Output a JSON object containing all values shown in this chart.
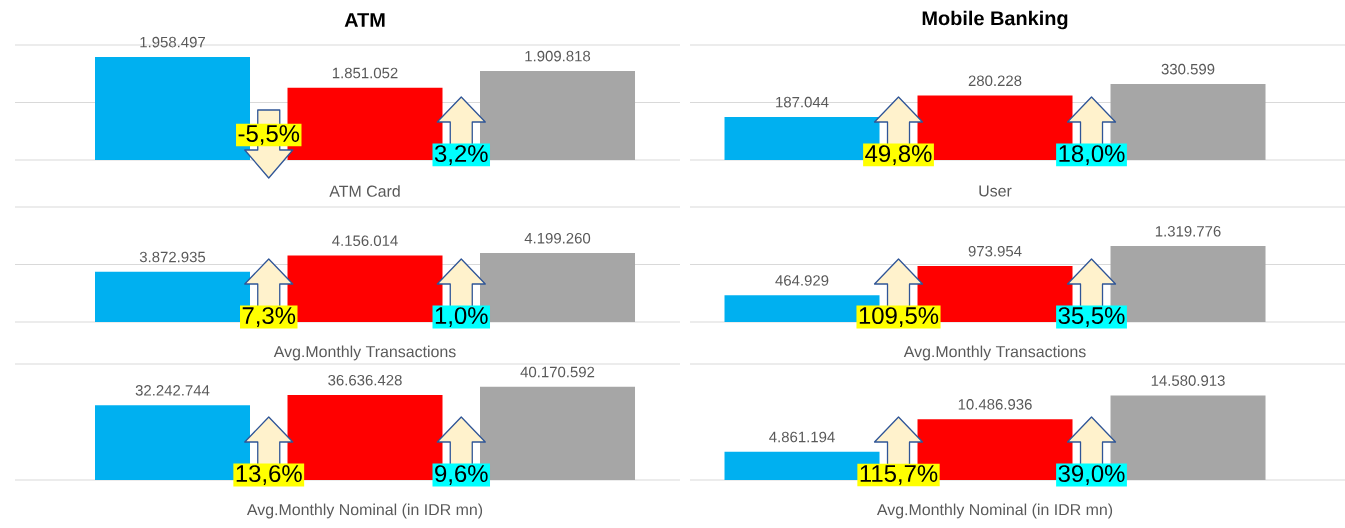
{
  "chart_data": [
    {
      "type": "bar",
      "title": "ATM",
      "xlabel": "ATM Card",
      "categories": [
        null,
        null,
        null
      ],
      "values": [
        1958497,
        1851052,
        1909818
      ],
      "colors": [
        "#00b0f0",
        "#ff0000",
        "#a6a6a6"
      ],
      "value_labels": [
        "1.958.497",
        "1.851.052",
        "1.909.818"
      ],
      "annotations": [
        "-5,5%",
        "3,2%"
      ],
      "ylim": [
        1600000,
        2000000
      ],
      "yticks": [
        {
          "value": 1600000,
          "label": null
        },
        {
          "value": 1800000,
          "label": null
        },
        {
          "value": 2000000,
          "label": null
        }
      ],
      "grid": "y"
    },
    {
      "type": "bar",
      "title": "Mobile Banking",
      "xlabel": "User",
      "categories": [
        null,
        null,
        null
      ],
      "values": [
        187044,
        280228,
        330599
      ],
      "colors": [
        "#00b0f0",
        "#ff0000",
        "#a6a6a6"
      ],
      "value_labels": [
        "187.044",
        "280.228",
        "330.599"
      ],
      "annotations": [
        "49,8%",
        "18,0%"
      ],
      "ylim": [
        0,
        500000
      ],
      "yticks": [
        {
          "value": 0,
          "label": null
        },
        {
          "value": 250000,
          "label": null
        },
        {
          "value": 500000,
          "label": null
        }
      ],
      "grid": "y"
    },
    {
      "type": "bar",
      "xlabel": "Avg.Monthly Transactions",
      "categories": [
        null,
        null,
        null
      ],
      "values": [
        3872935,
        4156014,
        4199260
      ],
      "colors": [
        "#00b0f0",
        "#ff0000",
        "#a6a6a6"
      ],
      "value_labels": [
        "3.872.935",
        "4.156.014",
        "4.199.260"
      ],
      "annotations": [
        "7,3%",
        "1,0%"
      ],
      "ylim": [
        3000000,
        5000000
      ],
      "yticks": [
        {
          "value": 3000000,
          "label": null
        },
        {
          "value": 4000000,
          "label": null
        },
        {
          "value": 5000000,
          "label": null
        }
      ],
      "grid": "y"
    },
    {
      "type": "bar",
      "xlabel": "Avg.Monthly Transactions",
      "categories": [
        null,
        null,
        null
      ],
      "values": [
        464929,
        973954,
        1319776
      ],
      "colors": [
        "#00b0f0",
        "#ff0000",
        "#a6a6a6"
      ],
      "value_labels": [
        "464.929",
        "973.954",
        "1.319.776"
      ],
      "annotations": [
        "109,5%",
        "35,5%"
      ],
      "ylim": [
        0,
        2000000
      ],
      "yticks": [
        {
          "value": 0,
          "label": null
        },
        {
          "value": 1000000,
          "label": null
        },
        {
          "value": 2000000,
          "label": null
        }
      ],
      "grid": "y"
    },
    {
      "type": "bar",
      "xlabel": "Avg.Monthly Nominal (in IDR mn)",
      "categories": [
        null,
        null,
        null
      ],
      "values": [
        32242744,
        36636428,
        40170592
      ],
      "colors": [
        "#00b0f0",
        "#ff0000",
        "#a6a6a6"
      ],
      "value_labels": [
        "32.242.744",
        "36.636.428",
        "40.170.592"
      ],
      "annotations": [
        "13,6%",
        "9,6%"
      ],
      "ylim": [
        0,
        50000000
      ],
      "yticks": [
        {
          "value": 0,
          "label": null
        },
        {
          "value": 50000000,
          "label": null
        }
      ],
      "grid": "y"
    },
    {
      "type": "bar",
      "xlabel": "Avg.Monthly Nominal (in IDR mn)",
      "categories": [
        null,
        null,
        null
      ],
      "values": [
        4861194,
        10486936,
        14580913
      ],
      "colors": [
        "#00b0f0",
        "#ff0000",
        "#a6a6a6"
      ],
      "value_labels": [
        "4.861.194",
        "10.486.936",
        "14.580.913"
      ],
      "annotations": [
        "115,7%",
        "39,0%"
      ],
      "ylim": [
        0,
        20000000
      ],
      "yticks": [
        {
          "value": 0,
          "label": null
        },
        {
          "value": 20000000,
          "label": null
        }
      ],
      "grid": "y"
    }
  ]
}
